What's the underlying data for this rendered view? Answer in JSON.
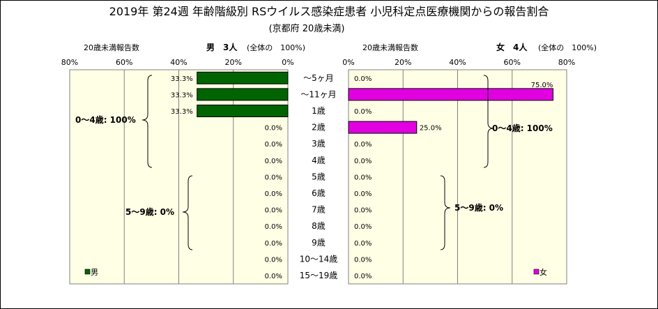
{
  "chart_data": {
    "type": "bar",
    "title": "2019年 第24週 年齢階級別 RSウイルス感染症患者 小児科定点医療機関からの報告割合",
    "subtitle": "(京都府 20歳未満)",
    "categories": [
      "～5ヶ月",
      "～11ヶ月",
      "1歳",
      "2歳",
      "3歳",
      "4歳",
      "5歳",
      "6歳",
      "7歳",
      "8歳",
      "9歳",
      "10～14歳",
      "15～19歳"
    ],
    "xlim": [
      0,
      80
    ],
    "ticks": [
      "80%",
      "60%",
      "40%",
      "20%",
      "0%"
    ],
    "ticks_right": [
      "0%",
      "20%",
      "40%",
      "60%",
      "80%"
    ],
    "grid": true,
    "series": [
      {
        "name": "男",
        "color": "#006400",
        "values": [
          33.3,
          33.3,
          33.3,
          0,
          0,
          0,
          0,
          0,
          0,
          0,
          0,
          0,
          0
        ],
        "labels": [
          "33.3%",
          "33.3%",
          "33.3%",
          "0.0%",
          "0.0%",
          "0.0%",
          "0.0%",
          "0.0%",
          "0.0%",
          "0.0%",
          "0.0%",
          "0.0%",
          "0.0%"
        ],
        "axis_label": "20歳未満報告数",
        "header": "男　3人",
        "total_note": "(全体の　100%)",
        "group_labels": [
          "0～4歳: 100%",
          "5～9歳: 0%"
        ],
        "legend": "男"
      },
      {
        "name": "女",
        "color": "#e000e0",
        "values": [
          0,
          75,
          0,
          25,
          0,
          0,
          0,
          0,
          0,
          0,
          0,
          0,
          0
        ],
        "labels": [
          "0.0%",
          "75.0%",
          "0.0%",
          "25.0%",
          "0.0%",
          "0.0%",
          "0.0%",
          "0.0%",
          "0.0%",
          "0.0%",
          "0.0%",
          "0.0%",
          "0.0%"
        ],
        "axis_label": "20歳未満報告数",
        "header": "女　4人",
        "total_note": "(全体の　100%)",
        "group_labels": [
          "0～4歳: 100%",
          "5～9歳: 0%"
        ],
        "legend": "女"
      }
    ]
  }
}
